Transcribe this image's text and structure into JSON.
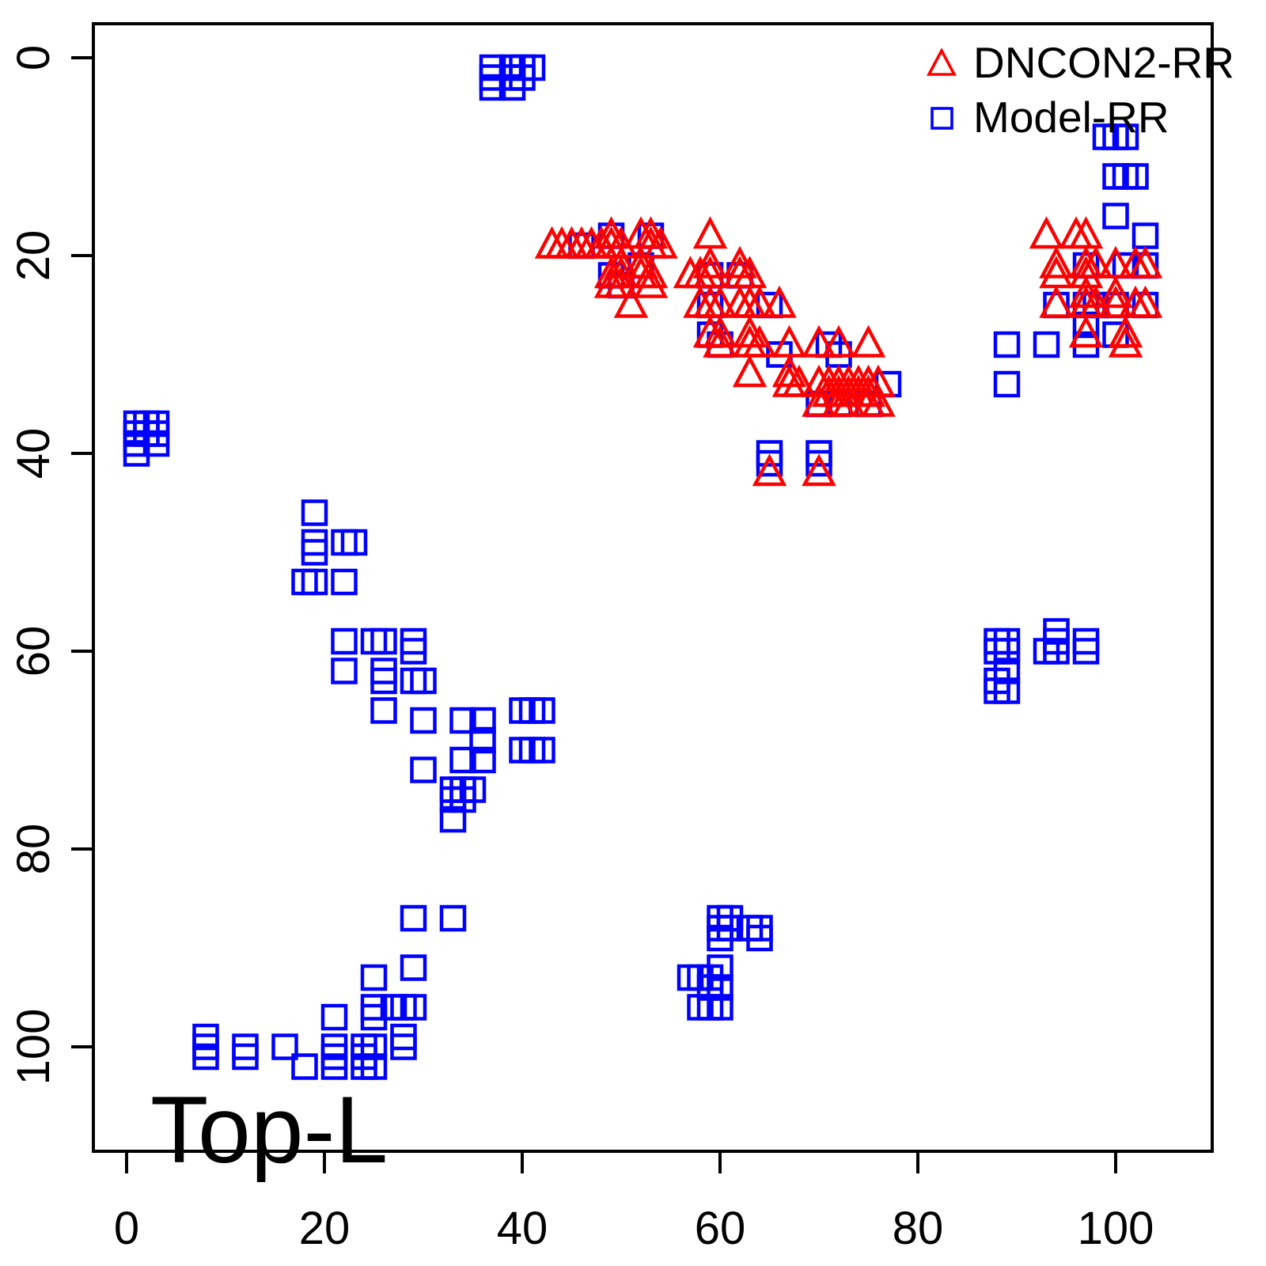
{
  "chart_data": {
    "type": "scatter",
    "title": "",
    "annotation": "Top-L",
    "xlabel": "",
    "ylabel": "",
    "x_ticks": [
      "0",
      "20",
      "40",
      "60",
      "80",
      "100"
    ],
    "x_tick_values": [
      0,
      20,
      40,
      60,
      80,
      100
    ],
    "y_ticks": [
      "0",
      "20",
      "40",
      "60",
      "80",
      "100"
    ],
    "y_tick_values": [
      0,
      20,
      40,
      60,
      80,
      100
    ],
    "x_range": [
      -3.36,
      109.76
    ],
    "y_range": [
      -3.44,
      110.56
    ],
    "y_axis_reversed": true,
    "grid": false,
    "axis_color": "#000000",
    "legend": {
      "position": "top-right",
      "entries": [
        {
          "label": "DNCON2-RR",
          "marker": "triangle",
          "color": "#FF0000"
        },
        {
          "label": "Model-RR",
          "marker": "square",
          "color": "#0000FF"
        }
      ]
    },
    "series": [
      {
        "name": "Model-RR",
        "marker": "square",
        "color": "#0000FF",
        "points": [
          [
            37,
            1
          ],
          [
            37,
            2
          ],
          [
            37,
            3
          ],
          [
            39,
            1
          ],
          [
            39,
            2
          ],
          [
            39,
            3
          ],
          [
            40,
            1
          ],
          [
            40,
            2
          ],
          [
            41,
            1
          ],
          [
            1,
            37
          ],
          [
            2,
            37
          ],
          [
            3,
            37
          ],
          [
            1,
            38
          ],
          [
            2,
            38
          ],
          [
            3,
            38
          ],
          [
            1,
            39
          ],
          [
            3,
            39
          ],
          [
            1,
            40
          ],
          [
            46,
            19
          ],
          [
            49,
            18
          ],
          [
            53,
            18
          ],
          [
            49,
            22
          ],
          [
            52,
            21
          ],
          [
            50,
            23
          ],
          [
            59,
            22
          ],
          [
            62,
            22
          ],
          [
            59,
            25
          ],
          [
            65,
            25
          ],
          [
            59,
            28
          ],
          [
            60,
            29
          ],
          [
            66,
            30
          ],
          [
            71,
            29
          ],
          [
            72,
            30
          ],
          [
            77,
            33
          ],
          [
            70,
            35
          ],
          [
            72,
            35
          ],
          [
            75,
            35
          ],
          [
            65,
            40
          ],
          [
            65,
            41
          ],
          [
            70,
            40
          ],
          [
            70,
            41
          ],
          [
            100,
            16
          ],
          [
            103,
            18
          ],
          [
            97,
            21
          ],
          [
            101,
            21
          ],
          [
            103,
            21
          ],
          [
            94,
            25
          ],
          [
            97,
            25
          ],
          [
            98,
            25
          ],
          [
            100,
            25
          ],
          [
            103,
            25
          ],
          [
            97,
            27
          ],
          [
            97,
            29
          ],
          [
            100,
            28
          ],
          [
            89,
            29
          ],
          [
            93,
            29
          ],
          [
            89,
            33
          ],
          [
            99,
            8
          ],
          [
            100,
            8
          ],
          [
            101,
            8
          ],
          [
            100,
            12
          ],
          [
            101,
            12
          ],
          [
            102,
            12
          ],
          [
            19,
            46
          ],
          [
            19,
            49
          ],
          [
            19,
            50
          ],
          [
            22,
            49
          ],
          [
            23,
            49
          ],
          [
            18,
            53
          ],
          [
            19,
            53
          ],
          [
            22,
            53
          ],
          [
            22,
            59
          ],
          [
            25,
            59
          ],
          [
            26,
            59
          ],
          [
            29,
            59
          ],
          [
            29,
            60
          ],
          [
            22,
            62
          ],
          [
            26,
            62
          ],
          [
            26,
            63
          ],
          [
            29,
            63
          ],
          [
            30,
            63
          ],
          [
            26,
            66
          ],
          [
            30,
            67
          ],
          [
            34,
            67
          ],
          [
            36,
            67
          ],
          [
            40,
            66
          ],
          [
            41,
            66
          ],
          [
            42,
            66
          ],
          [
            36,
            69
          ],
          [
            40,
            70
          ],
          [
            41,
            70
          ],
          [
            42,
            70
          ],
          [
            34,
            71
          ],
          [
            36,
            71
          ],
          [
            30,
            72
          ],
          [
            33,
            74
          ],
          [
            34,
            74
          ],
          [
            35,
            74
          ],
          [
            33,
            75
          ],
          [
            34,
            75
          ],
          [
            33,
            77
          ],
          [
            29,
            87
          ],
          [
            33,
            87
          ],
          [
            29,
            92
          ],
          [
            25,
            93
          ],
          [
            25,
            96
          ],
          [
            25,
            97
          ],
          [
            27,
            96
          ],
          [
            28,
            96
          ],
          [
            29,
            96
          ],
          [
            21,
            97
          ],
          [
            28,
            99
          ],
          [
            28,
            100
          ],
          [
            8,
            99
          ],
          [
            8,
            100
          ],
          [
            8,
            101
          ],
          [
            12,
            100
          ],
          [
            12,
            101
          ],
          [
            16,
            100
          ],
          [
            18,
            102
          ],
          [
            21,
            100
          ],
          [
            21,
            101
          ],
          [
            21,
            102
          ],
          [
            24,
            100
          ],
          [
            25,
            100
          ],
          [
            24,
            101
          ],
          [
            24,
            102
          ],
          [
            25,
            102
          ],
          [
            60,
            87
          ],
          [
            61,
            87
          ],
          [
            60,
            88
          ],
          [
            61,
            88
          ],
          [
            60,
            89
          ],
          [
            63,
            88
          ],
          [
            64,
            88
          ],
          [
            64,
            89
          ],
          [
            57,
            93
          ],
          [
            58,
            93
          ],
          [
            59,
            93
          ],
          [
            60,
            92
          ],
          [
            59,
            94
          ],
          [
            60,
            94
          ],
          [
            58,
            96
          ],
          [
            59,
            96
          ],
          [
            60,
            96
          ],
          [
            88,
            59
          ],
          [
            89,
            59
          ],
          [
            88,
            60
          ],
          [
            89,
            60
          ],
          [
            89,
            62
          ],
          [
            88,
            63
          ],
          [
            88,
            64
          ],
          [
            89,
            64
          ],
          [
            94,
            58
          ],
          [
            94,
            59
          ],
          [
            93,
            60
          ],
          [
            94,
            60
          ],
          [
            97,
            59
          ],
          [
            97,
            60
          ]
        ]
      },
      {
        "name": "DNCON2-RR",
        "marker": "triangle",
        "color": "#FF0000",
        "points": [
          [
            43,
            19
          ],
          [
            44,
            19
          ],
          [
            45,
            19
          ],
          [
            46,
            19
          ],
          [
            47,
            19
          ],
          [
            48,
            19
          ],
          [
            49,
            18
          ],
          [
            49,
            19
          ],
          [
            50,
            19
          ],
          [
            52,
            18
          ],
          [
            53,
            18
          ],
          [
            53,
            19
          ],
          [
            54,
            19
          ],
          [
            49,
            22
          ],
          [
            49,
            23
          ],
          [
            50,
            21
          ],
          [
            50,
            22
          ],
          [
            50,
            23
          ],
          [
            52,
            21
          ],
          [
            52,
            22
          ],
          [
            53,
            22
          ],
          [
            53,
            23
          ],
          [
            51,
            25
          ],
          [
            59,
            18
          ],
          [
            57,
            22
          ],
          [
            58,
            22
          ],
          [
            59,
            21
          ],
          [
            59,
            22
          ],
          [
            62,
            21
          ],
          [
            62,
            22
          ],
          [
            63,
            22
          ],
          [
            58,
            25
          ],
          [
            59,
            25
          ],
          [
            60,
            25
          ],
          [
            62,
            25
          ],
          [
            63,
            25
          ],
          [
            64,
            25
          ],
          [
            66,
            25
          ],
          [
            59,
            28
          ],
          [
            60,
            28
          ],
          [
            60,
            29
          ],
          [
            63,
            28
          ],
          [
            63,
            29
          ],
          [
            64,
            29
          ],
          [
            67,
            29
          ],
          [
            70,
            29
          ],
          [
            72,
            29
          ],
          [
            75,
            29
          ],
          [
            63,
            32
          ],
          [
            67,
            32
          ],
          [
            67,
            33
          ],
          [
            68,
            33
          ],
          [
            70,
            33
          ],
          [
            71,
            33
          ],
          [
            72,
            33
          ],
          [
            73,
            33
          ],
          [
            74,
            33
          ],
          [
            75,
            33
          ],
          [
            76,
            33
          ],
          [
            71,
            34
          ],
          [
            72,
            34
          ],
          [
            73,
            34
          ],
          [
            74,
            34
          ],
          [
            75,
            34
          ],
          [
            70,
            35
          ],
          [
            72,
            35
          ],
          [
            73,
            35
          ],
          [
            75,
            35
          ],
          [
            76,
            35
          ],
          [
            65,
            42
          ],
          [
            70,
            42
          ],
          [
            93,
            18
          ],
          [
            96,
            18
          ],
          [
            97,
            18
          ],
          [
            94,
            21
          ],
          [
            94,
            22
          ],
          [
            97,
            21
          ],
          [
            97,
            22
          ],
          [
            98,
            21
          ],
          [
            100,
            21
          ],
          [
            102,
            21
          ],
          [
            103,
            21
          ],
          [
            94,
            25
          ],
          [
            97,
            24
          ],
          [
            97,
            25
          ],
          [
            98,
            25
          ],
          [
            100,
            24
          ],
          [
            100,
            25
          ],
          [
            102,
            25
          ],
          [
            103,
            25
          ],
          [
            97,
            28
          ],
          [
            101,
            28
          ],
          [
            101,
            29
          ]
        ]
      }
    ]
  }
}
